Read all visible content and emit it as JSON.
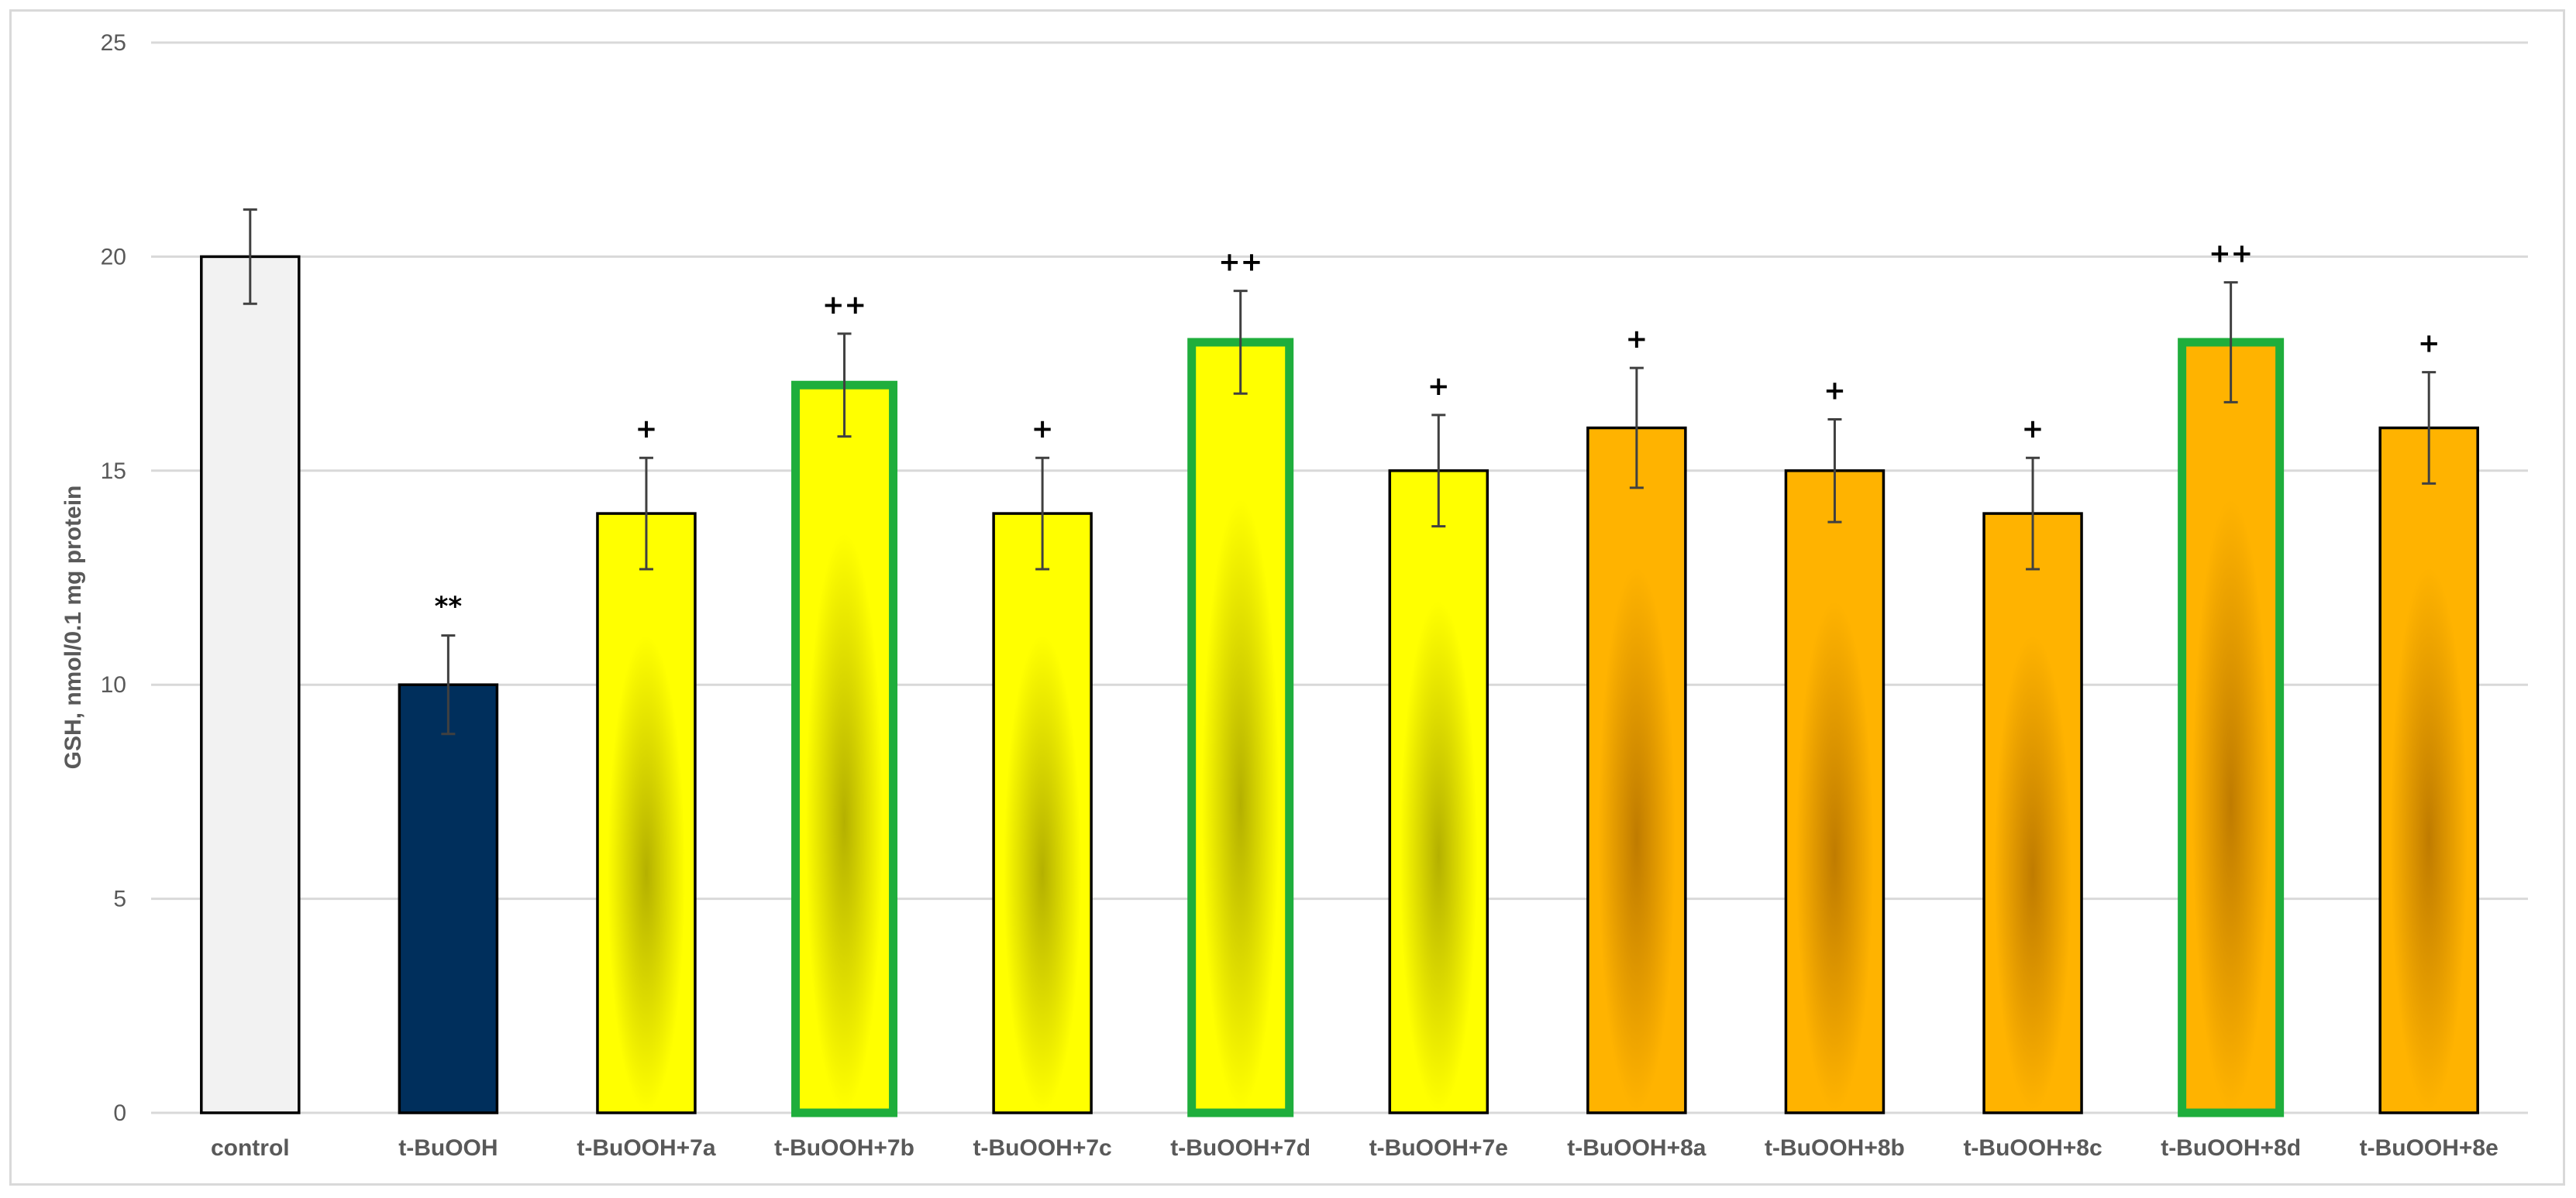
{
  "chart_data": {
    "type": "bar",
    "title": "",
    "xlabel": "",
    "ylabel": "GSH, nmol/0.1 mg protein",
    "ylim": [
      0,
      25
    ],
    "yticks": [
      0,
      5,
      10,
      15,
      20,
      25
    ],
    "grid": true,
    "legend": "none",
    "categories": [
      "control",
      "t-BuOOH",
      "t-BuOOH+7a",
      "t-BuOOH+7b",
      "t-BuOOH+7c",
      "t-BuOOH+7d",
      "t-BuOOH+7e",
      "t-BuOOH+8a",
      "t-BuOOH+8b",
      "t-BuOOH+8c",
      "t-BuOOH+8d",
      "t-BuOOH+8e"
    ],
    "values": [
      20,
      10,
      14,
      17,
      14,
      18,
      15,
      16,
      15,
      14,
      18,
      16
    ],
    "errors": [
      1.1,
      1.15,
      1.3,
      1.2,
      1.3,
      1.2,
      1.3,
      1.4,
      1.2,
      1.3,
      1.4,
      1.3
    ],
    "significance": [
      "",
      "**",
      "+",
      "++",
      "+",
      "++",
      "+",
      "+",
      "+",
      "+",
      "++",
      "+"
    ],
    "fill_styles": [
      "control",
      "navy",
      "yellow",
      "yellow",
      "yellow",
      "yellow",
      "yellow",
      "orange",
      "orange",
      "orange",
      "orange",
      "orange"
    ],
    "highlighted": [
      false,
      false,
      false,
      true,
      false,
      true,
      false,
      false,
      false,
      false,
      true,
      false
    ]
  },
  "colors": {
    "control_fill": "#f2f2f2",
    "navy_fill": "#002f5c",
    "yellow_light": "#ffff00",
    "yellow_dark": "#b4b000",
    "orange_light": "#ffb300",
    "orange_dark": "#bf7b00",
    "highlight_border": "#1fae3c",
    "bar_border": "#000000",
    "grid": "#d9d9d9",
    "axis_text": "#595959",
    "error_bar": "#404040"
  }
}
